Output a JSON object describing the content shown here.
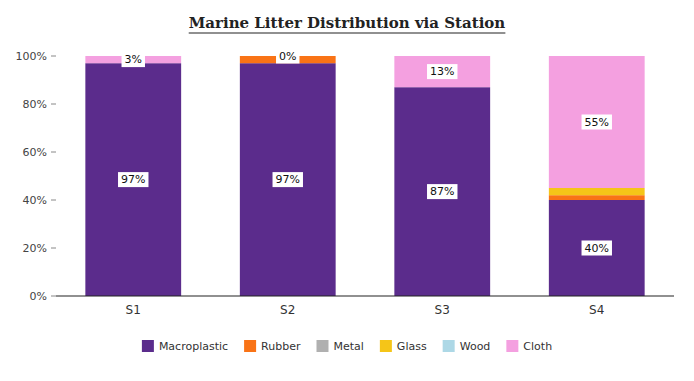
{
  "chart_data": {
    "type": "bar",
    "stacked": true,
    "title": "Marine Litter Distribution via Station",
    "categories": [
      "S1",
      "S2",
      "S3",
      "S4"
    ],
    "series": [
      {
        "name": "Macroplastic",
        "color": "#5b2c8c",
        "values": [
          97,
          97,
          87,
          40
        ],
        "value_labels": [
          "97%",
          "97%",
          "87%",
          "40%"
        ]
      },
      {
        "name": "Rubber",
        "color": "#f97316",
        "values": [
          0,
          3,
          0,
          2
        ]
      },
      {
        "name": "Metal",
        "color": "#b0b0b0",
        "values": [
          0,
          0,
          0,
          0
        ]
      },
      {
        "name": "Glass",
        "color": "#f5c518",
        "values": [
          0,
          0,
          0,
          3
        ]
      },
      {
        "name": "Wood",
        "color": "#add8e6",
        "values": [
          0,
          0,
          0,
          0
        ]
      },
      {
        "name": "Cloth",
        "color": "#f4a0e0",
        "values": [
          3,
          0,
          13,
          55
        ],
        "value_labels": [
          "3%",
          "0%",
          "13%",
          "55%"
        ]
      }
    ],
    "ylim": [
      0,
      100
    ],
    "yticks": [
      {
        "value": 0,
        "label": "0%"
      },
      {
        "value": 20,
        "label": "20%"
      },
      {
        "value": 40,
        "label": "40%"
      },
      {
        "value": 60,
        "label": "60%"
      },
      {
        "value": 80,
        "label": "80%"
      },
      {
        "value": 100,
        "label": "100%"
      }
    ],
    "grid": false,
    "legend": "bottom",
    "data_labels": true
  }
}
